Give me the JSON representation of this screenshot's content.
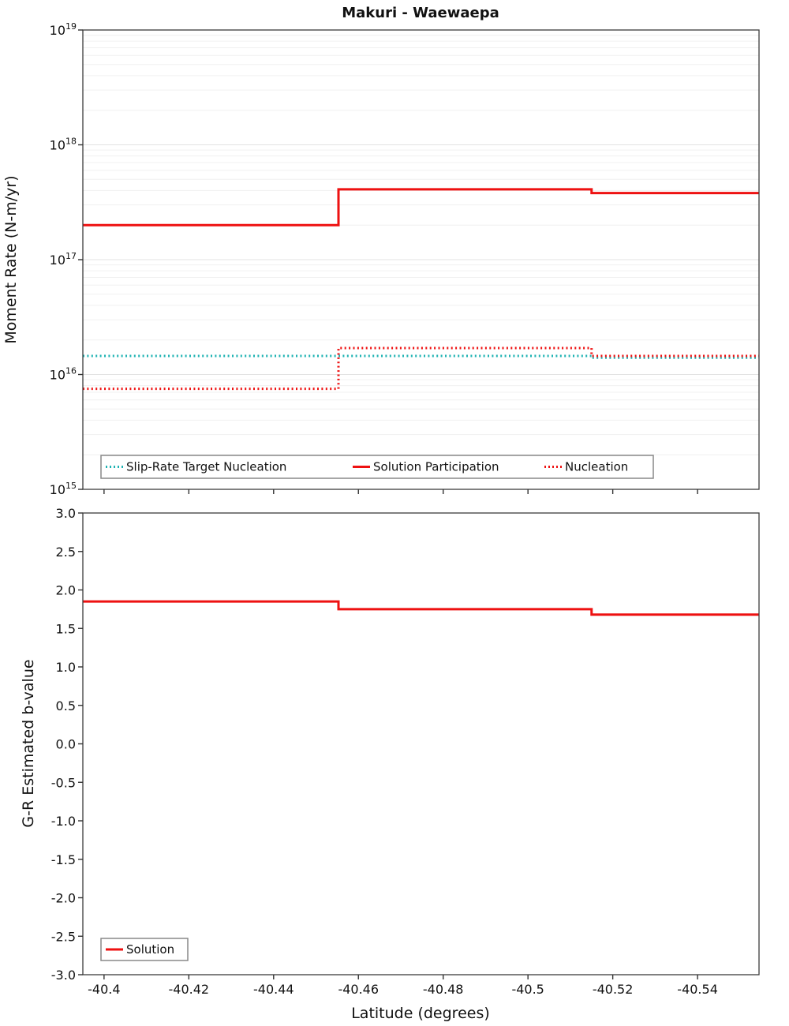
{
  "figure_title": "Makuri - Waewaepa",
  "colors": {
    "solution_red": "#ee1111",
    "target_teal": "#1fb3b3",
    "frame": "#3b3b3b"
  },
  "chart_data": [
    {
      "id": "moment_rate_panel",
      "type": "line",
      "title": "Makuri - Waewaepa",
      "ylabel": "Moment Rate (N-m/yr)",
      "xlabel": "",
      "x_axis": {
        "lim": [
          -40.395,
          -40.5545
        ],
        "inverted_display": true,
        "show_labels": false,
        "ticks": [
          {
            "v": -40.4,
            "label": "-40.4"
          },
          {
            "v": -40.42,
            "label": "-40.42"
          },
          {
            "v": -40.44,
            "label": "-40.44"
          },
          {
            "v": -40.46,
            "label": "-40.46"
          },
          {
            "v": -40.48,
            "label": "-40.48"
          },
          {
            "v": -40.5,
            "label": "-40.5"
          },
          {
            "v": -40.52,
            "label": "-40.52"
          },
          {
            "v": -40.54,
            "label": "-40.54"
          }
        ]
      },
      "y_axis": {
        "scale": "log",
        "exp_lim": [
          15,
          19
        ],
        "tick_exponents": [
          15,
          16,
          17,
          18,
          19
        ]
      },
      "grid": {
        "horizontal_log_minor": true,
        "vertical": false
      },
      "legend": {
        "position": "bottom-left-inside",
        "items": [
          {
            "label": "Slip-Rate Target Nucleation",
            "color": "#1fb3b3",
            "style": "dotted"
          },
          {
            "label": "Solution Participation",
            "color": "#ee1111",
            "style": "solid"
          },
          {
            "label": "Nucleation",
            "color": "#ee1111",
            "style": "dotted"
          }
        ]
      },
      "series": [
        {
          "name": "Slip-Rate Target Nucleation",
          "color": "#1fb3b3",
          "style": "dotted",
          "width": 3,
          "x": [
            -40.395,
            -40.515,
            -40.515,
            -40.5545
          ],
          "y": [
            1.45e+16,
            1.45e+16,
            1.4e+16,
            1.4e+16
          ]
        },
        {
          "name": "Solution Participation",
          "color": "#ee1111",
          "style": "solid",
          "width": 3,
          "x": [
            -40.395,
            -40.4553,
            -40.4553,
            -40.515,
            -40.515,
            -40.5545
          ],
          "y": [
            2e+17,
            2e+17,
            4.1e+17,
            4.1e+17,
            3.8e+17,
            3.8e+17
          ]
        },
        {
          "name": "Nucleation",
          "color": "#ee1111",
          "style": "dotted",
          "width": 3,
          "x": [
            -40.395,
            -40.4553,
            -40.4553,
            -40.515,
            -40.515,
            -40.5545
          ],
          "y": [
            7500000000000000.0,
            7500000000000000.0,
            1.7e+16,
            1.7e+16,
            1.45e+16,
            1.45e+16
          ]
        }
      ]
    },
    {
      "id": "b_value_panel",
      "type": "line",
      "title": "",
      "ylabel": "G-R Estimated b-value",
      "xlabel": "Latitude (degrees)",
      "x_axis": {
        "lim": [
          -40.395,
          -40.5545
        ],
        "inverted_display": true,
        "show_labels": true,
        "ticks": [
          {
            "v": -40.4,
            "label": "-40.4"
          },
          {
            "v": -40.42,
            "label": "-40.42"
          },
          {
            "v": -40.44,
            "label": "-40.44"
          },
          {
            "v": -40.46,
            "label": "-40.46"
          },
          {
            "v": -40.48,
            "label": "-40.48"
          },
          {
            "v": -40.5,
            "label": "-40.5"
          },
          {
            "v": -40.52,
            "label": "-40.52"
          },
          {
            "v": -40.54,
            "label": "-40.54"
          }
        ]
      },
      "y_axis": {
        "scale": "linear",
        "lim": [
          -3.0,
          3.0
        ],
        "ticks": [
          {
            "v": 3.0,
            "label": "3.0"
          },
          {
            "v": 2.5,
            "label": "2.5"
          },
          {
            "v": 2.0,
            "label": "2.0"
          },
          {
            "v": 1.5,
            "label": "1.5"
          },
          {
            "v": 1.0,
            "label": "1.0"
          },
          {
            "v": 0.5,
            "label": "0.5"
          },
          {
            "v": 0.0,
            "label": "0.0"
          },
          {
            "v": -0.5,
            "label": "-0.5"
          },
          {
            "v": -1.0,
            "label": "-1.0"
          },
          {
            "v": -1.5,
            "label": "-1.5"
          },
          {
            "v": -2.0,
            "label": "-2.0"
          },
          {
            "v": -2.5,
            "label": "-2.5"
          },
          {
            "v": -3.0,
            "label": "-3.0"
          }
        ]
      },
      "grid": {
        "horizontal_log_minor": false,
        "vertical": false
      },
      "legend": {
        "position": "bottom-left-inside",
        "items": [
          {
            "label": "Solution",
            "color": "#ee1111",
            "style": "solid"
          }
        ]
      },
      "series": [
        {
          "name": "Solution",
          "color": "#ee1111",
          "style": "solid",
          "width": 3,
          "x": [
            -40.395,
            -40.4553,
            -40.4553,
            -40.515,
            -40.515,
            -40.5545
          ],
          "y": [
            1.85,
            1.85,
            1.75,
            1.75,
            1.68,
            1.68
          ]
        }
      ]
    }
  ]
}
